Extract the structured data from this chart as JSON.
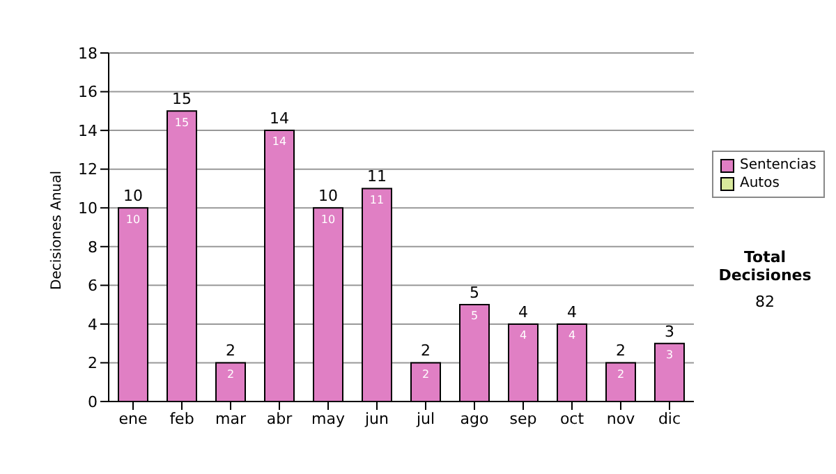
{
  "chart_data": {
    "type": "bar",
    "stacked": true,
    "ylabel": "Decisiones Anual",
    "categories": [
      "ene",
      "feb",
      "mar",
      "abr",
      "may",
      "jun",
      "jul",
      "ago",
      "sep",
      "oct",
      "nov",
      "dic"
    ],
    "series": [
      {
        "name": "Sentencias",
        "color": "#e07fc4",
        "values": [
          10,
          15,
          2,
          14,
          10,
          11,
          2,
          5,
          4,
          4,
          2,
          3
        ],
        "value_labels": [
          "10",
          "15",
          "2",
          "14",
          "10",
          "11",
          "2",
          "5",
          "4",
          "4",
          "2",
          "3"
        ]
      },
      {
        "name": "Autos",
        "color": "#d8e89c",
        "values": [
          0,
          0,
          0,
          0,
          0,
          0,
          0,
          0,
          0,
          0,
          0,
          0
        ]
      }
    ],
    "totals": [
      "10",
      "15",
      "2",
      "14",
      "10",
      "11",
      "2",
      "5",
      "4",
      "4",
      "2",
      "3"
    ],
    "ylim": [
      0,
      18
    ],
    "yticks": [
      0,
      2,
      4,
      6,
      8,
      10,
      12,
      14,
      16,
      18
    ],
    "grid": "y",
    "legend": "right",
    "annotations": [
      "Total Decisiones",
      "82"
    ]
  }
}
